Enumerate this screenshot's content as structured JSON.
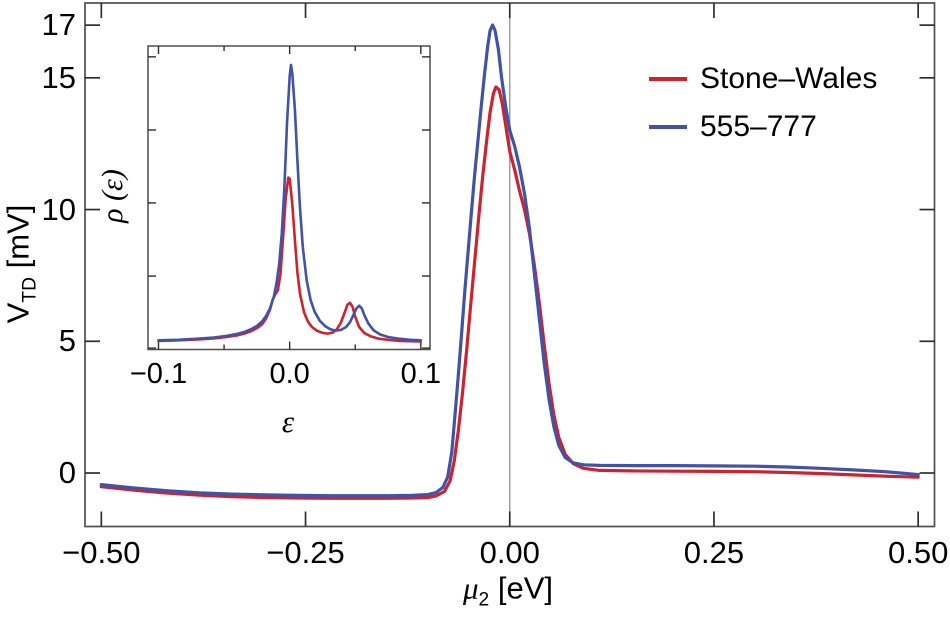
{
  "page": {
    "background": "#ffffff"
  },
  "chart_data": [
    {
      "id": "main",
      "type": "line",
      "title": "",
      "xlabel": "μ2 [eV]",
      "ylabel": "VTD [mV]",
      "xlabel_parts": {
        "base": "μ",
        "sub": "2",
        "unit": " [eV]"
      },
      "ylabel_parts": {
        "base": "V",
        "sub": "TD",
        "unit": " [mV]"
      },
      "xlim": [
        -0.52,
        0.52
      ],
      "ylim": [
        -2.03,
        17.84
      ],
      "x_tick_values": [
        -0.5,
        -0.25,
        0,
        0.25,
        0.5
      ],
      "x_tick_labels": [
        "−0.50",
        "−0.25",
        "0.00",
        "0.25",
        "0.50"
      ],
      "x_minor_ticks": [],
      "y_tick_values": [
        0,
        5,
        10,
        15,
        17
      ],
      "y_tick_labels": [
        "0",
        "5",
        "10",
        "15",
        "17"
      ],
      "y_minor_ticks": [],
      "vline_x": 0,
      "grid": "zero-line-only",
      "legend_position": "top-right",
      "frame_color": "#4f4f4f",
      "tick_color": "#2e2e2e",
      "gridline_color": "#9a9a9a",
      "series": [
        {
          "name": "Stone–Wales",
          "color": "#cb2430",
          "x": [
            -0.5,
            -0.46,
            -0.42,
            -0.38,
            -0.34,
            -0.3,
            -0.26,
            -0.22,
            -0.18,
            -0.15,
            -0.12,
            -0.1,
            -0.09,
            -0.08,
            -0.073,
            -0.068,
            -0.063,
            -0.058,
            -0.053,
            -0.048,
            -0.043,
            -0.038,
            -0.033,
            -0.028,
            -0.024,
            -0.02,
            -0.017,
            -0.013,
            -0.009,
            -0.004,
            0.0,
            0.006,
            0.012,
            0.018,
            0.024,
            0.03,
            0.036,
            0.042,
            0.048,
            0.054,
            0.06,
            0.068,
            0.078,
            0.09,
            0.11,
            0.15,
            0.2,
            0.25,
            0.3,
            0.34,
            0.38,
            0.42,
            0.46,
            0.5
          ],
          "y": [
            -0.52,
            -0.65,
            -0.76,
            -0.84,
            -0.9,
            -0.93,
            -0.95,
            -0.96,
            -0.96,
            -0.96,
            -0.95,
            -0.93,
            -0.87,
            -0.7,
            -0.3,
            0.45,
            1.6,
            3.0,
            4.6,
            6.3,
            8.0,
            9.7,
            11.3,
            12.7,
            13.7,
            14.4,
            14.65,
            14.55,
            14.0,
            13.0,
            12.2,
            11.5,
            10.7,
            10.0,
            9.1,
            7.9,
            6.5,
            4.9,
            3.4,
            2.2,
            1.35,
            0.7,
            0.35,
            0.18,
            0.1,
            0.08,
            0.07,
            0.06,
            0.05,
            0.02,
            -0.02,
            -0.07,
            -0.12,
            -0.16
          ]
        },
        {
          "name": "555–777",
          "color": "#4053a6",
          "x": [
            -0.5,
            -0.46,
            -0.42,
            -0.38,
            -0.34,
            -0.3,
            -0.26,
            -0.22,
            -0.18,
            -0.15,
            -0.12,
            -0.1,
            -0.09,
            -0.082,
            -0.076,
            -0.071,
            -0.067,
            -0.063,
            -0.059,
            -0.055,
            -0.051,
            -0.047,
            -0.043,
            -0.039,
            -0.035,
            -0.031,
            -0.027,
            -0.024,
            -0.021,
            -0.018,
            -0.014,
            -0.01,
            -0.005,
            0.0,
            0.006,
            0.012,
            0.018,
            0.024,
            0.03,
            0.036,
            0.042,
            0.048,
            0.054,
            0.06,
            0.068,
            0.078,
            0.09,
            0.11,
            0.15,
            0.2,
            0.25,
            0.3,
            0.34,
            0.38,
            0.42,
            0.46,
            0.5
          ],
          "y": [
            -0.44,
            -0.57,
            -0.67,
            -0.75,
            -0.8,
            -0.83,
            -0.85,
            -0.86,
            -0.86,
            -0.86,
            -0.85,
            -0.82,
            -0.74,
            -0.55,
            -0.15,
            0.8,
            2.2,
            3.7,
            5.3,
            6.9,
            8.4,
            9.9,
            11.3,
            12.6,
            13.9,
            15.1,
            16.2,
            16.8,
            17.0,
            16.8,
            16.1,
            15.0,
            13.9,
            13.0,
            12.4,
            11.6,
            10.6,
            9.3,
            7.6,
            5.9,
            4.2,
            2.8,
            1.75,
            1.05,
            0.58,
            0.38,
            0.31,
            0.29,
            0.28,
            0.28,
            0.27,
            0.26,
            0.23,
            0.18,
            0.12,
            0.05,
            -0.06
          ]
        }
      ]
    },
    {
      "id": "inset",
      "type": "line",
      "title": "",
      "xlabel": "ε",
      "ylabel": "ρ (ε)",
      "xlim": [
        -0.108,
        0.107
      ],
      "ylim": [
        -0.023,
        1.068
      ],
      "x_tick_values": [
        -0.1,
        0.0,
        0.1
      ],
      "x_tick_labels": [
        "−0.1",
        "0.0",
        "0.1"
      ],
      "x_minor_ticks": [
        -0.05,
        0.05
      ],
      "y_tick_values": [
        -0.018,
        0.241,
        0.504,
        0.766,
        1.029
      ],
      "y_tick_labels": [],
      "y_minor_ticks": [],
      "vline_x": null,
      "grid": "none",
      "frame_color": "#4f4f4f",
      "tick_color": "#2e2e2e",
      "gridline_color": "#9a9a9a",
      "series": [
        {
          "name": "Stone–Wales",
          "color": "#cb2430",
          "x": [
            -0.1,
            -0.085,
            -0.07,
            -0.058,
            -0.048,
            -0.04,
            -0.034,
            -0.029,
            -0.025,
            -0.021,
            -0.018,
            -0.015,
            -0.013,
            -0.011,
            -0.009,
            -0.007,
            -0.005,
            -0.003,
            -0.001,
            0.0,
            0.002,
            0.004,
            0.006,
            0.008,
            0.011,
            0.014,
            0.017,
            0.021,
            0.025,
            0.029,
            0.033,
            0.036,
            0.039,
            0.042,
            0.044,
            0.046,
            0.048,
            0.05,
            0.053,
            0.057,
            0.062,
            0.068,
            0.076,
            0.085,
            0.1
          ],
          "y": [
            0.008,
            0.01,
            0.013,
            0.017,
            0.022,
            0.028,
            0.035,
            0.044,
            0.054,
            0.068,
            0.088,
            0.12,
            0.155,
            0.175,
            0.19,
            0.25,
            0.38,
            0.52,
            0.595,
            0.59,
            0.5,
            0.37,
            0.25,
            0.175,
            0.11,
            0.077,
            0.058,
            0.044,
            0.037,
            0.034,
            0.038,
            0.05,
            0.073,
            0.11,
            0.138,
            0.145,
            0.13,
            0.095,
            0.058,
            0.036,
            0.024,
            0.016,
            0.011,
            0.008,
            0.006
          ]
        },
        {
          "name": "555–777",
          "color": "#4053a6",
          "x": [
            -0.1,
            -0.085,
            -0.07,
            -0.058,
            -0.048,
            -0.04,
            -0.034,
            -0.029,
            -0.025,
            -0.021,
            -0.018,
            -0.015,
            -0.012,
            -0.01,
            -0.008,
            -0.006,
            -0.004,
            -0.002,
            0.0,
            0.001,
            0.002,
            0.004,
            0.006,
            0.008,
            0.01,
            0.013,
            0.016,
            0.019,
            0.023,
            0.027,
            0.031,
            0.035,
            0.039,
            0.043,
            0.046,
            0.049,
            0.051,
            0.053,
            0.055,
            0.057,
            0.06,
            0.064,
            0.069,
            0.075,
            0.083,
            0.092,
            0.1
          ],
          "y": [
            0.01,
            0.012,
            0.016,
            0.02,
            0.026,
            0.033,
            0.041,
            0.051,
            0.062,
            0.078,
            0.097,
            0.125,
            0.168,
            0.215,
            0.285,
            0.395,
            0.56,
            0.79,
            0.96,
            1.0,
            0.97,
            0.84,
            0.65,
            0.48,
            0.345,
            0.225,
            0.155,
            0.113,
            0.08,
            0.061,
            0.05,
            0.045,
            0.047,
            0.058,
            0.075,
            0.105,
            0.125,
            0.134,
            0.125,
            0.1,
            0.07,
            0.046,
            0.031,
            0.022,
            0.016,
            0.012,
            0.01
          ]
        }
      ]
    }
  ]
}
